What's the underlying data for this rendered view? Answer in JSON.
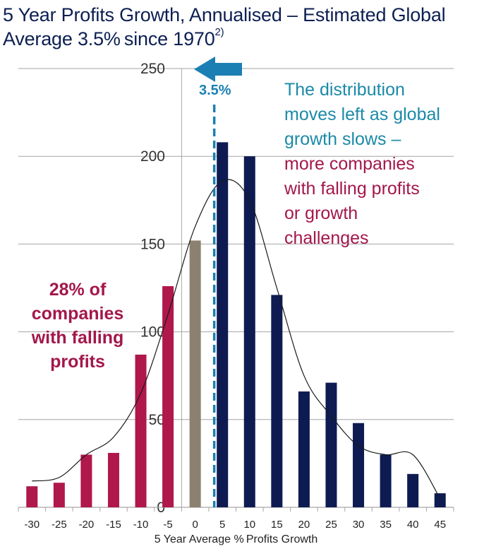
{
  "chart_data": {
    "type": "bar",
    "title_line1": "5 Year Profits Growth, Annualised – Estimated Global",
    "title_line2": "Average 3.5% since 1970",
    "title_superscript": "2)",
    "xlabel": "5 Year Average % Profits Growth",
    "ylabel": "",
    "ylim": [
      0,
      250
    ],
    "yticks": [
      0,
      50,
      100,
      150,
      200,
      250
    ],
    "categories": [
      "-30",
      "-25",
      "-20",
      "-15",
      "-10",
      "-5",
      "0",
      "5",
      "10",
      "15",
      "20",
      "25",
      "30",
      "35",
      "40",
      "45"
    ],
    "values": [
      12,
      14,
      30,
      31,
      87,
      126,
      152,
      208,
      200,
      121,
      66,
      71,
      48,
      30,
      19,
      8
    ],
    "bar_groups": [
      "falling",
      "falling",
      "falling",
      "falling",
      "falling",
      "falling",
      "flat",
      "growing",
      "growing",
      "growing",
      "growing",
      "growing",
      "growing",
      "growing",
      "growing",
      "growing"
    ],
    "group_colors": {
      "falling": "#b0174b",
      "flat": "#8c8070",
      "growing": "#0d1b52"
    },
    "fit_curve_x": [
      -30,
      -25,
      -20,
      -15,
      -10,
      -5,
      0,
      5,
      10,
      15,
      20,
      25,
      30,
      35,
      40,
      45
    ],
    "fit_curve_y": [
      15,
      17,
      30,
      40,
      65,
      110,
      160,
      186,
      175,
      125,
      75,
      52,
      35,
      30,
      30,
      5
    ],
    "average_line": {
      "x": 3.5,
      "label": "3.5%",
      "color": "#1b7fb3"
    },
    "arrow": {
      "direction": "left",
      "color": "#1b7fb3"
    },
    "grid": true,
    "annotations": {
      "left_text": [
        "28% of",
        "companies",
        "with falling",
        "profits"
      ],
      "right_blue": [
        "The distribution",
        "moves left as global",
        "growth slows –"
      ],
      "right_red": [
        "more companies",
        "with falling profits",
        "or growth",
        "challenges"
      ]
    }
  }
}
